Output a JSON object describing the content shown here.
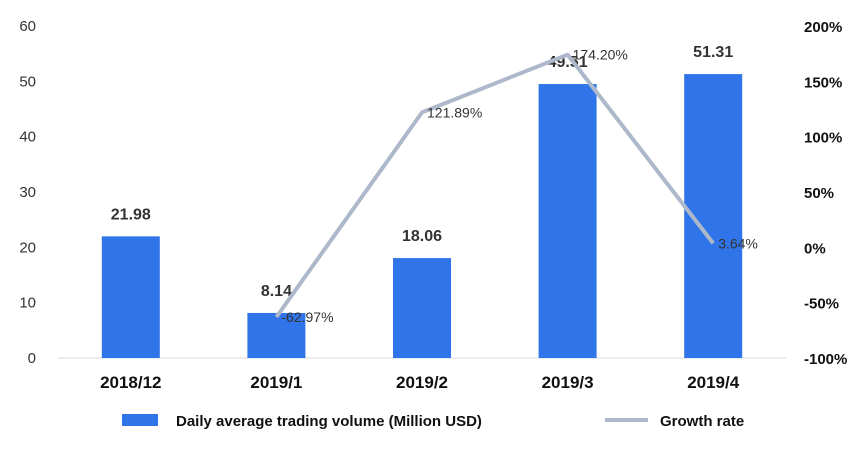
{
  "chart_data": {
    "type": "bar",
    "categories": [
      "2018/12",
      "2019/1",
      "2019/2",
      "2019/3",
      "2019/4"
    ],
    "series": [
      {
        "name": "Daily average trading volume  (Million USD)",
        "type": "bar",
        "axis": "left",
        "color": "#2f74e8",
        "values": [
          21.98,
          8.14,
          18.06,
          49.51,
          51.31
        ],
        "labels": [
          "21.98",
          "8.14",
          "18.06",
          "49.51",
          "51.31"
        ]
      },
      {
        "name": "Growth rate",
        "type": "line",
        "axis": "right",
        "color": "#adb9ca",
        "values": [
          null,
          -62.97,
          121.89,
          174.2,
          3.64
        ],
        "labels": [
          "",
          "-62.97%",
          "121.89%",
          "174.20%",
          "3.64%"
        ]
      }
    ],
    "left_axis": {
      "ylim": [
        0,
        60
      ],
      "ticks": [
        "0",
        "10",
        "20",
        "30",
        "40",
        "50",
        "60"
      ],
      "tick_values": [
        0,
        10,
        20,
        30,
        40,
        50,
        60
      ]
    },
    "right_axis": {
      "ylim": [
        -100,
        200
      ],
      "ticks": [
        "-100%",
        "-50%",
        "0%",
        "50%",
        "100%",
        "150%",
        "200%"
      ],
      "tick_values": [
        -100,
        -50,
        0,
        50,
        100,
        150,
        200
      ]
    },
    "title": "",
    "xlabel": "",
    "ylabel": "",
    "grid": false,
    "legend_position": "bottom"
  }
}
